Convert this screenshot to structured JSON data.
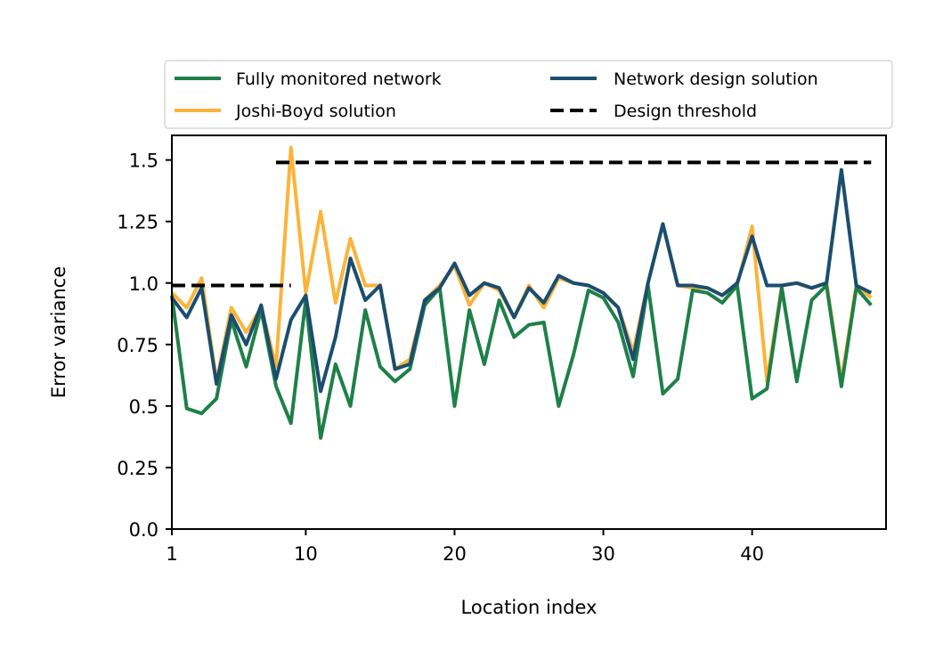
{
  "chart_data": {
    "type": "line",
    "xlabel": "Location index",
    "ylabel": "Error variance",
    "xlim": [
      1,
      49
    ],
    "ylim": [
      0,
      1.6
    ],
    "xticks": [
      1,
      10,
      20,
      30,
      40
    ],
    "xtick_labels": [
      "1",
      "10",
      "20",
      "30",
      "40"
    ],
    "yticks": [
      0,
      0.25,
      0.5,
      0.75,
      1.0,
      1.25,
      1.5
    ],
    "ytick_labels": [
      "0.0",
      "0.25",
      "0.5",
      "0.75",
      "1.0",
      "1.25",
      "1.5"
    ],
    "grid": false,
    "legend_position": "top",
    "x": [
      1,
      2,
      3,
      4,
      5,
      6,
      7,
      8,
      9,
      10,
      11,
      12,
      13,
      14,
      15,
      16,
      17,
      18,
      19,
      20,
      21,
      22,
      23,
      24,
      25,
      26,
      27,
      28,
      29,
      30,
      31,
      32,
      33,
      34,
      35,
      36,
      37,
      38,
      39,
      40,
      41,
      42,
      43,
      44,
      45,
      46,
      47,
      48
    ],
    "series": [
      {
        "name": "Joshi-Boyd solution",
        "color": "#fbb43a",
        "style": "solid",
        "values": [
          0.96,
          0.9,
          1.02,
          0.6,
          0.9,
          0.8,
          0.9,
          0.66,
          1.55,
          0.96,
          1.29,
          0.92,
          1.18,
          0.99,
          0.99,
          0.65,
          0.69,
          0.93,
          0.99,
          1.07,
          0.91,
          1.0,
          0.97,
          0.86,
          0.99,
          0.9,
          1.02,
          1.0,
          0.99,
          0.96,
          0.9,
          0.72,
          1.0,
          1.24,
          0.99,
          0.98,
          0.98,
          0.95,
          0.99,
          1.23,
          0.6,
          0.99,
          1.0,
          0.98,
          1.0,
          0.6,
          0.99,
          0.94
        ]
      },
      {
        "name": "Fully monitored network",
        "color": "#1e8048",
        "style": "solid",
        "values": [
          0.95,
          0.49,
          0.47,
          0.53,
          0.85,
          0.66,
          0.89,
          0.58,
          0.43,
          0.93,
          0.37,
          0.67,
          0.5,
          0.89,
          0.66,
          0.6,
          0.65,
          0.91,
          0.98,
          0.5,
          0.89,
          0.67,
          0.93,
          0.78,
          0.83,
          0.84,
          0.5,
          0.71,
          0.97,
          0.94,
          0.84,
          0.62,
          0.99,
          0.55,
          0.61,
          0.97,
          0.96,
          0.92,
          0.99,
          0.53,
          0.57,
          0.98,
          0.6,
          0.93,
          0.99,
          0.58,
          0.98,
          0.91
        ]
      },
      {
        "name": "Network design solution",
        "color": "#1a4e70",
        "style": "solid",
        "values": [
          0.94,
          0.86,
          0.98,
          0.59,
          0.87,
          0.75,
          0.91,
          0.61,
          0.85,
          0.95,
          0.56,
          0.78,
          1.1,
          0.93,
          0.99,
          0.65,
          0.67,
          0.93,
          0.98,
          1.08,
          0.95,
          1.0,
          0.98,
          0.86,
          0.98,
          0.92,
          1.03,
          1.0,
          0.99,
          0.96,
          0.9,
          0.69,
          1.0,
          1.24,
          0.99,
          0.99,
          0.98,
          0.95,
          1.0,
          1.19,
          0.99,
          0.99,
          1.0,
          0.98,
          1.0,
          1.46,
          0.99,
          0.96
        ]
      }
    ],
    "thresholds": [
      {
        "name": "Design threshold",
        "color": "#000000",
        "style": "dashed",
        "segments": [
          {
            "x": [
              1,
              9
            ],
            "y": 0.99
          },
          {
            "x": [
              8,
              48
            ],
            "y": 1.49
          }
        ]
      }
    ],
    "legend": [
      {
        "label": "Fully monitored network",
        "color": "#1e8048",
        "style": "solid"
      },
      {
        "label": "Network design solution",
        "color": "#1a4e70",
        "style": "solid"
      },
      {
        "label": "Joshi-Boyd solution",
        "color": "#fbb43a",
        "style": "solid"
      },
      {
        "label": "Design threshold",
        "color": "#000000",
        "style": "dashed"
      }
    ]
  }
}
